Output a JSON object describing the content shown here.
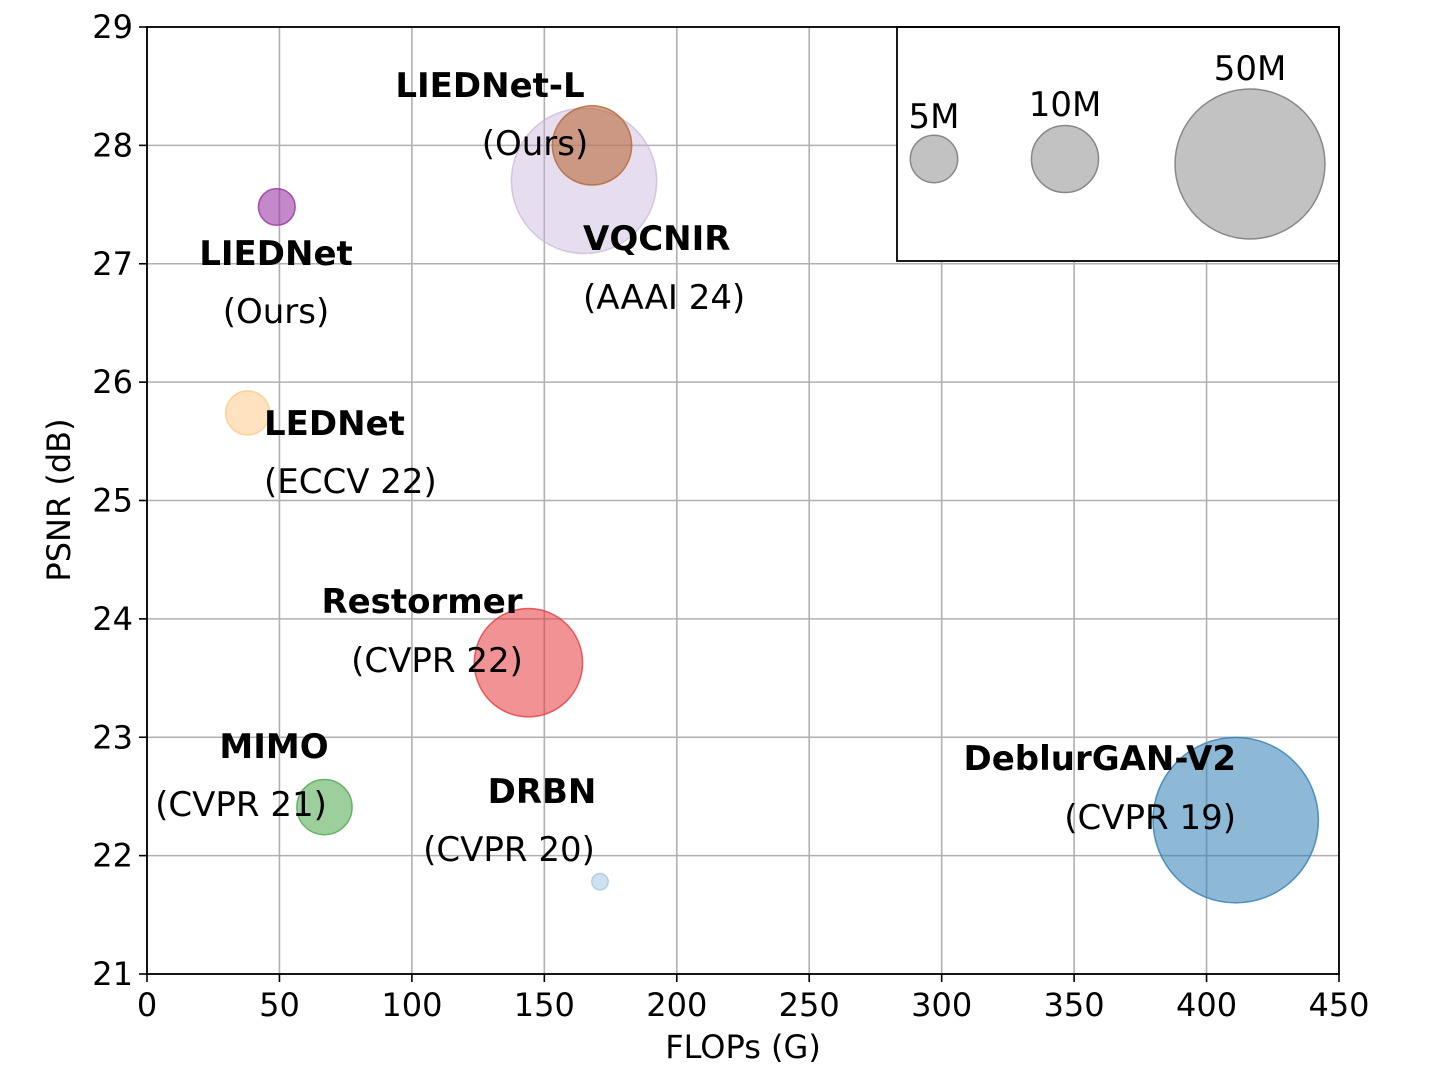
{
  "chart_data": {
    "type": "scatter",
    "xlabel": "FLOPs (G)",
    "ylabel": "PSNR (dB)",
    "xlim": [
      0,
      450
    ],
    "ylim": [
      21,
      29
    ],
    "xticks": [
      "0",
      "50",
      "100",
      "150",
      "200",
      "250",
      "300",
      "350",
      "400",
      "450"
    ],
    "yticks": [
      "21",
      "22",
      "23",
      "24",
      "25",
      "26",
      "27",
      "28",
      "29"
    ],
    "grid": true,
    "legend_placement": "top-right",
    "points": [
      {
        "name": "VQCNIR",
        "venue": "(AAAI 24)",
        "flops": 165,
        "psnr": 27.7,
        "params_m": 47,
        "color": "#c8b4d9",
        "opacity": 0.45
      },
      {
        "name": "LIEDNet-L",
        "venue": "(Ours)",
        "flops": 168,
        "psnr": 28.0,
        "params_m": 14,
        "color": "#b86a3c",
        "opacity": 0.6
      },
      {
        "name": "LIEDNet",
        "venue": "(Ours)",
        "flops": 49,
        "psnr": 27.48,
        "params_m": 3.0,
        "color": "#9b3aa3",
        "opacity": 0.6
      },
      {
        "name": "LEDNet",
        "venue": "(ECCV 22)",
        "flops": 38,
        "psnr": 25.74,
        "params_m": 4.3,
        "color": "#ffc680",
        "opacity": 0.5
      },
      {
        "name": "Restormer",
        "venue": "(CVPR 22)",
        "flops": 144,
        "psnr": 23.63,
        "params_m": 26.1,
        "color": "#e63a3d",
        "opacity": 0.55
      },
      {
        "name": "MIMO",
        "venue": "(CVPR 21)",
        "flops": 67,
        "psnr": 22.41,
        "params_m": 6.8,
        "color": "#4ca84c",
        "opacity": 0.55
      },
      {
        "name": "DRBN",
        "venue": "(CVPR 20)",
        "flops": 171,
        "psnr": 21.78,
        "params_m": 0.6,
        "color": "#a6c8e3",
        "opacity": 0.55
      },
      {
        "name": "DeblurGAN-V2",
        "venue": "(CVPR 19)",
        "flops": 411,
        "psnr": 22.3,
        "params_m": 60.9,
        "color": "#2f7db5",
        "opacity": 0.55
      }
    ],
    "size_legend": [
      {
        "label": "5M",
        "params_m": 5
      },
      {
        "label": "10M",
        "params_m": 10
      },
      {
        "label": "50M",
        "params_m": 50
      }
    ],
    "size_legend_color": "#999999"
  }
}
